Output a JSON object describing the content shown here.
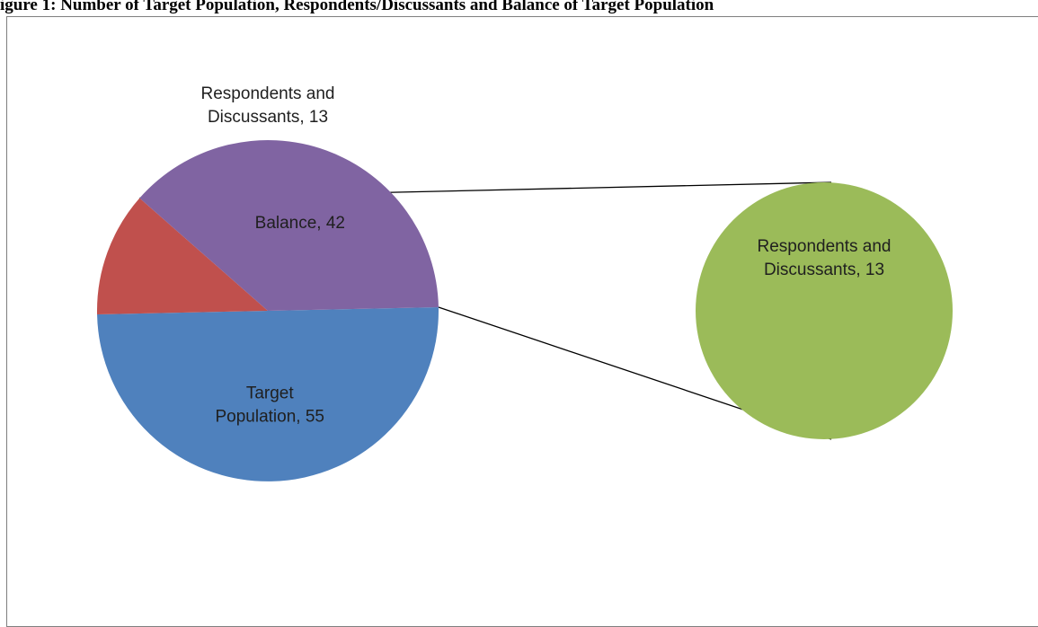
{
  "figure": {
    "title": "igure 1: Number of Target Population, Respondents/Discussants and Balance of Target Population"
  },
  "chart_data": {
    "type": "pie",
    "subtype": "pie-of-pie",
    "slices": [
      {
        "name": "Target Population",
        "label_lines": [
          "Target",
          "Population, 55"
        ],
        "value": 55,
        "color": "#4f81bd"
      },
      {
        "name": "Respondents and Discussants",
        "label_lines": [
          "Respondents and",
          "Discussants, 13"
        ],
        "value": 13,
        "color": "#c0504d"
      },
      {
        "name": "Balance",
        "label_lines": [
          "Balance, 42"
        ],
        "value": 42,
        "color": "#8064a2"
      }
    ],
    "secondary_pie": {
      "slices": [
        {
          "name": "Respondents and Discussants",
          "label_lines": [
            "Respondents and",
            "Discussants, 13"
          ],
          "value": 13,
          "color": "#9bbb59"
        }
      ]
    },
    "legend": "none"
  }
}
